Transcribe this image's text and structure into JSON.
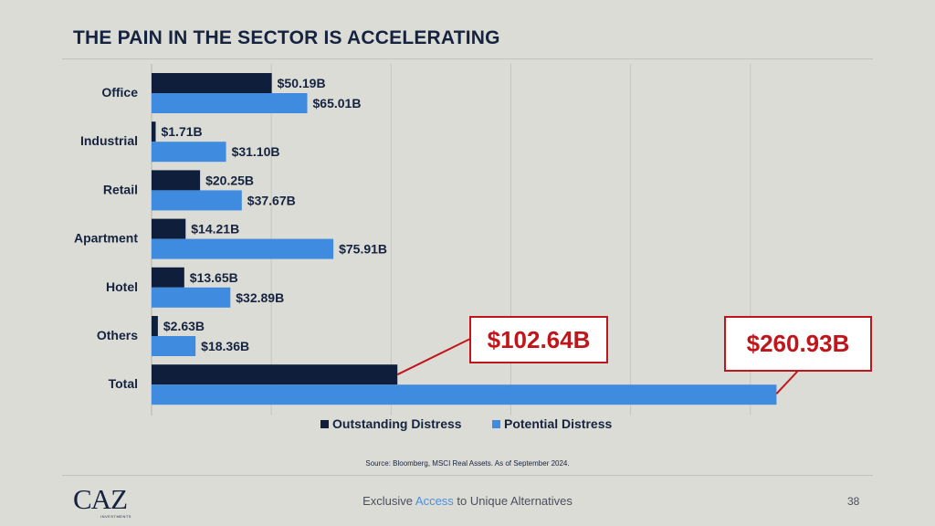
{
  "title": "THE PAIN IN THE SECTOR IS ACCELERATING",
  "chart_data": {
    "type": "bar",
    "orientation": "horizontal",
    "categories": [
      "Office",
      "Industrial",
      "Retail",
      "Apartment",
      "Hotel",
      "Others",
      "Total"
    ],
    "series": [
      {
        "name": "Outstanding Distress",
        "color": "#0f1e3a",
        "values": [
          50.19,
          1.71,
          20.25,
          14.21,
          13.65,
          2.63,
          102.64
        ],
        "labels": [
          "$50.19B",
          "$1.71B",
          "$20.25B",
          "$14.21B",
          "$13.65B",
          "$2.63B",
          "$102.64B"
        ]
      },
      {
        "name": "Potential Distress",
        "color": "#3f8be0",
        "values": [
          65.01,
          31.1,
          37.67,
          75.91,
          32.89,
          18.36,
          260.93
        ],
        "labels": [
          "$65.01B",
          "$31.10B",
          "$37.67B",
          "$75.91B",
          "$32.89B",
          "$18.36B",
          "$260.93B"
        ]
      }
    ],
    "xlim": [
      0,
      300
    ],
    "grid": true,
    "legend_position": "bottom",
    "callouts": [
      "$102.64B",
      "$260.93B"
    ],
    "callout_color": "#c0151a"
  },
  "source": "Source: Bloomberg, MSCI Real Assets. As of September 2024.",
  "footer": {
    "logo": "CAZ",
    "logo_sub": "INVESTMENTS",
    "tagline_pre": "Exclusive ",
    "tagline_accent": "Access",
    "tagline_post": " to Unique Alternatives",
    "page_number": "38"
  }
}
